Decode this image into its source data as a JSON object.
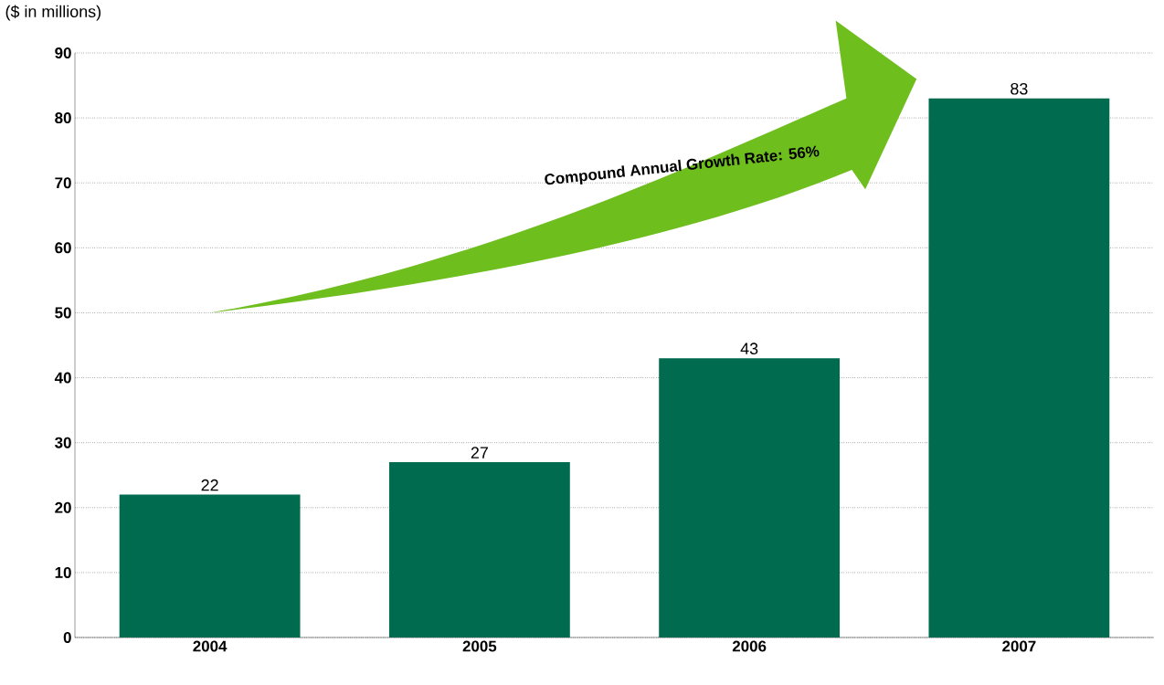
{
  "chart_data": {
    "type": "bar",
    "ylabel": "($ in millions)",
    "categories": [
      "2004",
      "2005",
      "2006",
      "2007"
    ],
    "values": [
      22,
      27,
      43,
      83
    ],
    "color": "#006b4f",
    "ylim": [
      0,
      90
    ],
    "yticks": [
      0,
      10,
      20,
      30,
      40,
      50,
      60,
      70,
      80,
      90
    ],
    "grid": "y",
    "data_labels": true,
    "annotations": [
      "Compound Annual Growth Rate: 56%"
    ]
  }
}
